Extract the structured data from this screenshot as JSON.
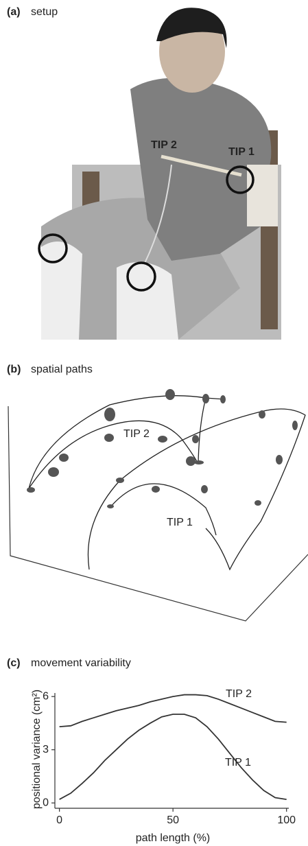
{
  "panels": [
    {
      "label": "(a)",
      "title": "setup",
      "annotations": [
        "TIP 2",
        "TIP 1"
      ]
    },
    {
      "label": "(b)",
      "title": "spatial paths",
      "annotations": [
        "TIP 2",
        "TIP 1"
      ]
    }
  ],
  "chart_data": {
    "type": "line",
    "label": "(c)",
    "title": "movement variability",
    "xlabel": "path length (%)",
    "ylabel": "positional variance (cm²)",
    "x": [
      0,
      5,
      10,
      15,
      20,
      25,
      30,
      35,
      40,
      45,
      50,
      55,
      60,
      65,
      70,
      75,
      80,
      85,
      90,
      95,
      100
    ],
    "series": [
      {
        "name": "TIP 2",
        "color": "#333333",
        "values": [
          4.3,
          4.35,
          4.6,
          4.8,
          5.0,
          5.2,
          5.35,
          5.5,
          5.7,
          5.85,
          6.0,
          6.1,
          6.1,
          6.05,
          5.85,
          5.6,
          5.35,
          5.1,
          4.85,
          4.6,
          4.55
        ]
      },
      {
        "name": "TIP 1",
        "color": "#333333",
        "values": [
          0.2,
          0.55,
          1.1,
          1.7,
          2.4,
          3.0,
          3.6,
          4.1,
          4.5,
          4.85,
          5.0,
          5.0,
          4.8,
          4.3,
          3.6,
          2.8,
          2.0,
          1.3,
          0.7,
          0.3,
          0.2
        ]
      }
    ],
    "xlim": [
      -2,
      101
    ],
    "xticks": [
      0,
      50,
      100
    ],
    "ylim": [
      -0.3,
      6.2
    ],
    "yticks": [
      0,
      3,
      6
    ]
  }
}
